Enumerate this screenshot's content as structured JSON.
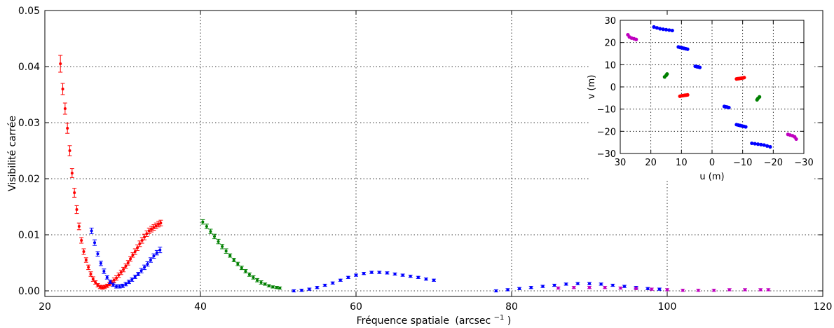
{
  "chart_data": [
    {
      "type": "scatter",
      "xlabel": "Fréquence spatiale",
      "xlabel_unit": "(arcsec",
      "xlabel_unit_exp": "−1",
      "xlabel_unit_close": ")",
      "ylabel": "Visibilité carrée",
      "xlim": [
        20,
        120
      ],
      "ylim": [
        -0.001,
        0.05
      ],
      "xticks": [
        "20",
        "40",
        "60",
        "80",
        "100",
        "120"
      ],
      "yticks": [
        "0.00",
        "0.01",
        "0.02",
        "0.03",
        "0.04",
        "0.05"
      ],
      "grid": true,
      "errorbars": true,
      "series": [
        {
          "color": "#ff0000",
          "x": [
            22.0,
            22.3,
            22.6,
            22.9,
            23.2,
            23.5,
            23.8,
            24.1,
            24.4,
            24.7,
            25.0,
            25.3,
            25.6,
            25.9,
            26.2,
            26.5,
            26.8,
            27.1,
            27.4,
            27.7,
            28.0,
            28.3,
            28.6,
            28.9,
            29.2,
            29.5,
            29.8,
            30.1,
            30.4,
            30.7,
            31.0,
            31.3,
            31.6,
            31.9,
            32.2,
            32.5,
            32.8,
            33.1,
            33.4,
            33.7,
            34.0,
            34.3,
            34.6,
            34.9
          ],
          "y": [
            0.0405,
            0.036,
            0.0325,
            0.029,
            0.025,
            0.021,
            0.0175,
            0.0145,
            0.0115,
            0.009,
            0.007,
            0.0055,
            0.0042,
            0.003,
            0.0021,
            0.0015,
            0.001,
            0.0007,
            0.0006,
            0.0007,
            0.0009,
            0.0012,
            0.0015,
            0.0019,
            0.0023,
            0.0028,
            0.0033,
            0.0038,
            0.0044,
            0.005,
            0.0057,
            0.0064,
            0.007,
            0.0077,
            0.0084,
            0.009,
            0.0096,
            0.0102,
            0.0107,
            0.011,
            0.0113,
            0.0116,
            0.0119,
            0.0121
          ],
          "err": [
            0.0015,
            0.001,
            0.001,
            0.0009,
            0.0009,
            0.0008,
            0.0008,
            0.0007,
            0.0006,
            0.0005,
            0.0005,
            0.0004,
            0.0004,
            0.0004,
            0.0004,
            0.0003,
            0.0003,
            0.0003,
            0.0003,
            0.0003,
            0.0003,
            0.0003,
            0.0003,
            0.0004,
            0.0004,
            0.0004,
            0.0004,
            0.0004,
            0.0004,
            0.0004,
            0.0004,
            0.0004,
            0.0005,
            0.0005,
            0.0005,
            0.0005,
            0.0005,
            0.0005,
            0.0005,
            0.0005,
            0.0005,
            0.0005,
            0.0005,
            0.0005
          ]
        },
        {
          "color": "#0000ff",
          "x": [
            26.0,
            26.4,
            26.8,
            27.2,
            27.6,
            28.0,
            28.4,
            28.8,
            29.2,
            29.6,
            30.0,
            30.4,
            30.8,
            31.2,
            31.6,
            32.0,
            32.4,
            32.8,
            33.2,
            33.6,
            34.0,
            34.4,
            34.8
          ],
          "y": [
            0.0107,
            0.0086,
            0.0066,
            0.0049,
            0.0035,
            0.0024,
            0.0016,
            0.0011,
            0.0008,
            0.0008,
            0.0009,
            0.0012,
            0.0016,
            0.002,
            0.0025,
            0.003,
            0.0036,
            0.0042,
            0.0048,
            0.0055,
            0.0062,
            0.0068,
            0.0073
          ],
          "err": [
            0.0005,
            0.0005,
            0.0004,
            0.0004,
            0.0004,
            0.0003,
            0.0003,
            0.0003,
            0.0003,
            0.0003,
            0.0003,
            0.0003,
            0.0003,
            0.0003,
            0.0003,
            0.0003,
            0.0004,
            0.0004,
            0.0004,
            0.0004,
            0.0004,
            0.0004,
            0.0005
          ]
        },
        {
          "color": "#008000",
          "x": [
            40.3,
            40.8,
            41.3,
            41.8,
            42.3,
            42.8,
            43.3,
            43.8,
            44.3,
            44.8,
            45.3,
            45.8,
            46.3,
            46.8,
            47.3,
            47.8,
            48.3,
            48.8,
            49.3,
            49.8,
            50.2
          ],
          "y": [
            0.0123,
            0.0115,
            0.0106,
            0.0097,
            0.0088,
            0.0079,
            0.0071,
            0.0063,
            0.0055,
            0.0048,
            0.0041,
            0.0035,
            0.0029,
            0.0024,
            0.0019,
            0.0015,
            0.0012,
            0.0009,
            0.0007,
            0.0006,
            0.0005
          ],
          "err": [
            0.0004,
            0.0004,
            0.0004,
            0.0004,
            0.0004,
            0.0004,
            0.0004,
            0.0003,
            0.0003,
            0.0003,
            0.0003,
            0.0003,
            0.0003,
            0.0003,
            0.0003,
            0.0003,
            0.0002,
            0.0002,
            0.0002,
            0.0002,
            0.0002
          ]
        },
        {
          "color": "#0000ff",
          "x": [
            52.0,
            53.0,
            54.0,
            55.0,
            56.0,
            57.0,
            58.0,
            59.0,
            60.0,
            61.0,
            62.0,
            63.0,
            64.0,
            65.0,
            66.0,
            67.0,
            68.0,
            69.0,
            70.0
          ],
          "y": [
            0.0,
            0.0001,
            0.0003,
            0.0006,
            0.001,
            0.0014,
            0.0019,
            0.0024,
            0.0028,
            0.0031,
            0.0033,
            0.0033,
            0.0032,
            0.003,
            0.0028,
            0.0026,
            0.0024,
            0.0021,
            0.0019
          ],
          "err": [
            0.0002,
            0.0002,
            0.0002,
            0.0002,
            0.0002,
            0.0002,
            0.0002,
            0.0002,
            0.0002,
            0.0002,
            0.0002,
            0.0002,
            0.0002,
            0.0002,
            0.0002,
            0.0002,
            0.0002,
            0.0002,
            0.0002
          ]
        },
        {
          "color": "#0000ff",
          "x": [
            78.0,
            79.5,
            81.0,
            82.5,
            84.0,
            85.5,
            87.0,
            88.5,
            90.0,
            91.5,
            93.0,
            94.5,
            96.0,
            97.5,
            99.0
          ],
          "y": [
            0.0,
            0.0002,
            0.0004,
            0.0006,
            0.0008,
            0.001,
            0.0012,
            0.0013,
            0.0013,
            0.0012,
            0.001,
            0.0008,
            0.0006,
            0.0004,
            0.0003
          ],
          "err": [
            0.0002,
            0.0002,
            0.0002,
            0.0002,
            0.0002,
            0.0002,
            0.0002,
            0.0002,
            0.0002,
            0.0002,
            0.0002,
            0.0002,
            0.0002,
            0.0002,
            0.0002
          ]
        },
        {
          "color": "#bf00bf",
          "x": [
            86.0,
            88.0,
            90.0,
            92.0,
            94.0,
            96.0,
            98.0,
            100.0,
            102.0,
            104.0,
            106.0,
            108.0,
            110.0,
            112.0,
            113.0
          ],
          "y": [
            0.0005,
            0.0006,
            0.0006,
            0.0006,
            0.0005,
            0.0004,
            0.0003,
            0.0002,
            0.0001,
            0.0001,
            0.0001,
            0.0002,
            0.0002,
            0.0002,
            0.0002
          ],
          "err": [
            0.0002,
            0.0002,
            0.0002,
            0.0002,
            0.0002,
            0.0002,
            0.0002,
            0.0002,
            0.0002,
            0.0002,
            0.0002,
            0.0002,
            0.0002,
            0.0002,
            0.0002
          ]
        }
      ]
    },
    {
      "type": "scatter",
      "xlabel": "u (m)",
      "ylabel": "v (m)",
      "xlim": [
        30,
        -30
      ],
      "ylim": [
        -30,
        30
      ],
      "xticks": [
        "30",
        "20",
        "10",
        "0",
        "−10",
        "−20",
        "−30"
      ],
      "yticks": [
        "30",
        "20",
        "10",
        "0",
        "−10",
        "−20",
        "−30"
      ],
      "grid": true,
      "series": [
        {
          "color": "#0000ff",
          "x": [
            19,
            18,
            17,
            16,
            15,
            14,
            13
          ],
          "y": [
            27,
            26.6,
            26.2,
            26,
            25.8,
            25.6,
            25.4
          ]
        },
        {
          "color": "#0000ff",
          "x": [
            11,
            10.4,
            9.8,
            9.2,
            8.6,
            8.0
          ],
          "y": [
            18,
            17.8,
            17.6,
            17.4,
            17.2,
            17
          ]
        },
        {
          "color": "#0000ff",
          "x": [
            5.5,
            5.0,
            4.5,
            4.0
          ],
          "y": [
            9.3,
            9.1,
            9.0,
            8.8
          ]
        },
        {
          "color": "#0000ff",
          "x": [
            -4.0,
            -4.5,
            -5.0,
            -5.5
          ],
          "y": [
            -8.8,
            -9.0,
            -9.1,
            -9.3
          ]
        },
        {
          "color": "#0000ff",
          "x": [
            -8.0,
            -8.6,
            -9.2,
            -9.8,
            -10.4,
            -11.0
          ],
          "y": [
            -17,
            -17.2,
            -17.4,
            -17.6,
            -17.8,
            -18
          ]
        },
        {
          "color": "#0000ff",
          "x": [
            -13,
            -14,
            -15,
            -16,
            -17,
            -18,
            -19
          ],
          "y": [
            -25.4,
            -25.6,
            -25.8,
            -26,
            -26.2,
            -26.6,
            -27
          ]
        },
        {
          "color": "#ff0000",
          "x": [
            10.5,
            10,
            9.5,
            9,
            8.5,
            8
          ],
          "y": [
            -4.2,
            -4,
            -3.9,
            -3.8,
            -3.7,
            -3.6
          ]
        },
        {
          "color": "#ff0000",
          "x": [
            -8,
            -8.5,
            -9,
            -9.5,
            -10,
            -10.5
          ],
          "y": [
            3.6,
            3.7,
            3.8,
            3.9,
            4,
            4.2
          ]
        },
        {
          "color": "#008000",
          "x": [
            15.5,
            15.0,
            14.7
          ],
          "y": [
            4.5,
            5.2,
            5.8
          ]
        },
        {
          "color": "#008000",
          "x": [
            -14.7,
            -15.0,
            -15.5
          ],
          "y": [
            -5.8,
            -5.2,
            -4.5
          ]
        },
        {
          "color": "#bf00bf",
          "x": [
            27.5,
            27,
            26.3,
            25.5,
            24.8
          ],
          "y": [
            23.5,
            22.5,
            22,
            21.7,
            21.4
          ]
        },
        {
          "color": "#bf00bf",
          "x": [
            -24.8,
            -25.5,
            -26.3,
            -27,
            -27.5
          ],
          "y": [
            -21.4,
            -21.7,
            -22,
            -22.5,
            -23.5
          ]
        }
      ]
    }
  ]
}
